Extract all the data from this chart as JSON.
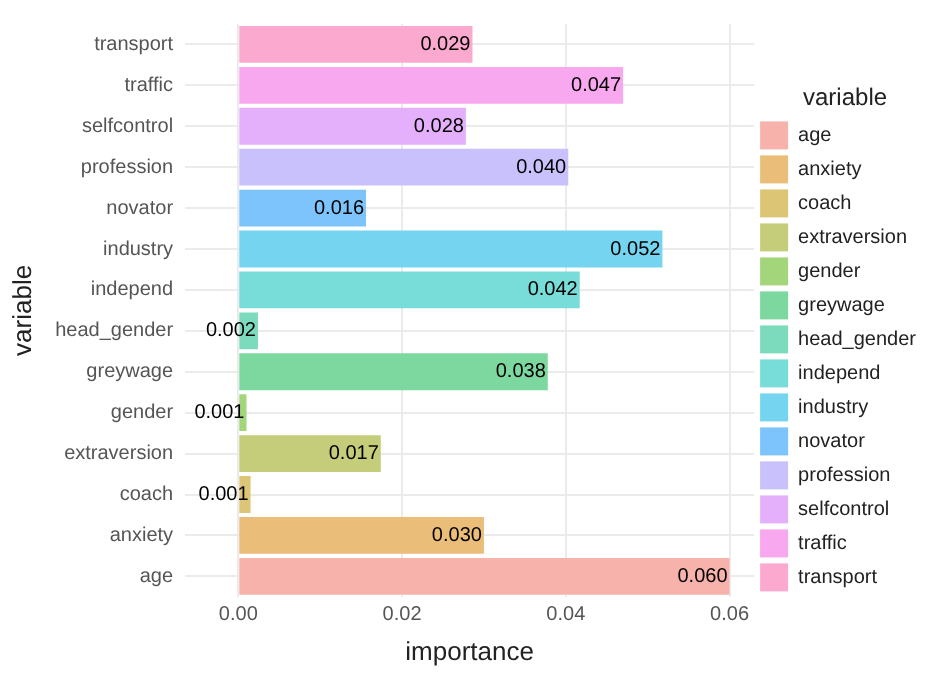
{
  "chart_data": {
    "type": "bar",
    "orientation": "horizontal",
    "xlabel": "importance",
    "ylabel": "variable",
    "legend_title": "variable",
    "legend": "right",
    "grid": true,
    "categories": [
      "transport",
      "traffic",
      "selfcontrol",
      "profession",
      "novator",
      "industry",
      "independ",
      "head_gender",
      "greywage",
      "gender",
      "extraversion",
      "coach",
      "anxiety",
      "age"
    ],
    "xlim": [
      -0.0065,
      0.063
    ],
    "xticks": [
      {
        "value": 0,
        "label": "0.00"
      },
      {
        "value": 0.02,
        "label": "0.02"
      },
      {
        "value": 0.04,
        "label": "0.04"
      },
      {
        "value": 0.06,
        "label": "0.06"
      }
    ],
    "series": [
      {
        "name": "age",
        "color": "#f7b2ab",
        "values": [
          null,
          null,
          null,
          null,
          null,
          null,
          null,
          null,
          null,
          null,
          null,
          null,
          null,
          0.06
        ],
        "value_labels": [
          null,
          null,
          null,
          null,
          null,
          null,
          null,
          null,
          null,
          null,
          null,
          null,
          null,
          "0.060"
        ]
      },
      {
        "name": "anxiety",
        "color": "#eabd78",
        "values": [
          null,
          null,
          null,
          null,
          null,
          null,
          null,
          null,
          null,
          null,
          null,
          null,
          0.03,
          null
        ],
        "value_labels": [
          null,
          null,
          null,
          null,
          null,
          null,
          null,
          null,
          null,
          null,
          null,
          null,
          "0.030",
          null
        ]
      },
      {
        "name": "coach",
        "color": "#dcc676",
        "values": [
          null,
          null,
          null,
          null,
          null,
          null,
          null,
          null,
          null,
          null,
          null,
          0.0015,
          null,
          null
        ],
        "value_labels": [
          null,
          null,
          null,
          null,
          null,
          null,
          null,
          null,
          null,
          null,
          null,
          "0.001",
          null,
          null
        ]
      },
      {
        "name": "extraversion",
        "color": "#c5cd7a",
        "values": [
          null,
          null,
          null,
          null,
          null,
          null,
          null,
          null,
          null,
          null,
          0.0174,
          null,
          null,
          null
        ],
        "value_labels": [
          null,
          null,
          null,
          null,
          null,
          null,
          null,
          null,
          null,
          null,
          "0.017",
          null,
          null,
          null
        ]
      },
      {
        "name": "gender",
        "color": "#a3d57a",
        "values": [
          null,
          null,
          null,
          null,
          null,
          null,
          null,
          null,
          null,
          0.001,
          null,
          null,
          null,
          null
        ],
        "value_labels": [
          null,
          null,
          null,
          null,
          null,
          null,
          null,
          null,
          null,
          "0.001",
          null,
          null,
          null,
          null
        ]
      },
      {
        "name": "greywage",
        "color": "#7dd8a0",
        "values": [
          null,
          null,
          null,
          null,
          null,
          null,
          null,
          null,
          0.0378,
          null,
          null,
          null,
          null,
          null
        ],
        "value_labels": [
          null,
          null,
          null,
          null,
          null,
          null,
          null,
          null,
          "0.038",
          null,
          null,
          null,
          null,
          null
        ]
      },
      {
        "name": "head_gender",
        "color": "#7ddbbd",
        "values": [
          null,
          null,
          null,
          null,
          null,
          null,
          null,
          0.0024,
          null,
          null,
          null,
          null,
          null,
          null
        ],
        "value_labels": [
          null,
          null,
          null,
          null,
          null,
          null,
          null,
          "0.002",
          null,
          null,
          null,
          null,
          null,
          null
        ]
      },
      {
        "name": "independ",
        "color": "#78dcd8",
        "values": [
          null,
          null,
          null,
          null,
          null,
          null,
          0.0417,
          null,
          null,
          null,
          null,
          null,
          null,
          null
        ],
        "value_labels": [
          null,
          null,
          null,
          null,
          null,
          null,
          "0.042",
          null,
          null,
          null,
          null,
          null,
          null,
          null
        ]
      },
      {
        "name": "industry",
        "color": "#75d4f0",
        "values": [
          null,
          null,
          null,
          null,
          null,
          0.0518,
          null,
          null,
          null,
          null,
          null,
          null,
          null,
          null
        ],
        "value_labels": [
          null,
          null,
          null,
          null,
          null,
          "0.052",
          null,
          null,
          null,
          null,
          null,
          null,
          null,
          null
        ]
      },
      {
        "name": "novator",
        "color": "#7cc4fb",
        "values": [
          null,
          null,
          null,
          null,
          0.0156,
          null,
          null,
          null,
          null,
          null,
          null,
          null,
          null,
          null
        ],
        "value_labels": [
          null,
          null,
          null,
          null,
          "0.016",
          null,
          null,
          null,
          null,
          null,
          null,
          null,
          null,
          null
        ]
      },
      {
        "name": "profession",
        "color": "#c9c1fb",
        "values": [
          null,
          null,
          null,
          0.0403,
          null,
          null,
          null,
          null,
          null,
          null,
          null,
          null,
          null,
          null
        ],
        "value_labels": [
          null,
          null,
          null,
          "0.040",
          null,
          null,
          null,
          null,
          null,
          null,
          null,
          null,
          null,
          null
        ]
      },
      {
        "name": "selfcontrol",
        "color": "#e5b0fb",
        "values": [
          null,
          null,
          0.0278,
          null,
          null,
          null,
          null,
          null,
          null,
          null,
          null,
          null,
          null,
          null
        ],
        "value_labels": [
          null,
          null,
          "0.028",
          null,
          null,
          null,
          null,
          null,
          null,
          null,
          null,
          null,
          null,
          null
        ]
      },
      {
        "name": "traffic",
        "color": "#f7a8ee",
        "values": [
          null,
          0.047,
          null,
          null,
          null,
          null,
          null,
          null,
          null,
          null,
          null,
          null,
          null,
          null
        ],
        "value_labels": [
          null,
          "0.047",
          null,
          null,
          null,
          null,
          null,
          null,
          null,
          null,
          null,
          null,
          null,
          null
        ]
      },
      {
        "name": "transport",
        "color": "#fba9cf",
        "values": [
          0.0286,
          null,
          null,
          null,
          null,
          null,
          null,
          null,
          null,
          null,
          null,
          null,
          null,
          null
        ],
        "value_labels": [
          "0.029",
          null,
          null,
          null,
          null,
          null,
          null,
          null,
          null,
          null,
          null,
          null,
          null,
          null
        ]
      }
    ]
  }
}
